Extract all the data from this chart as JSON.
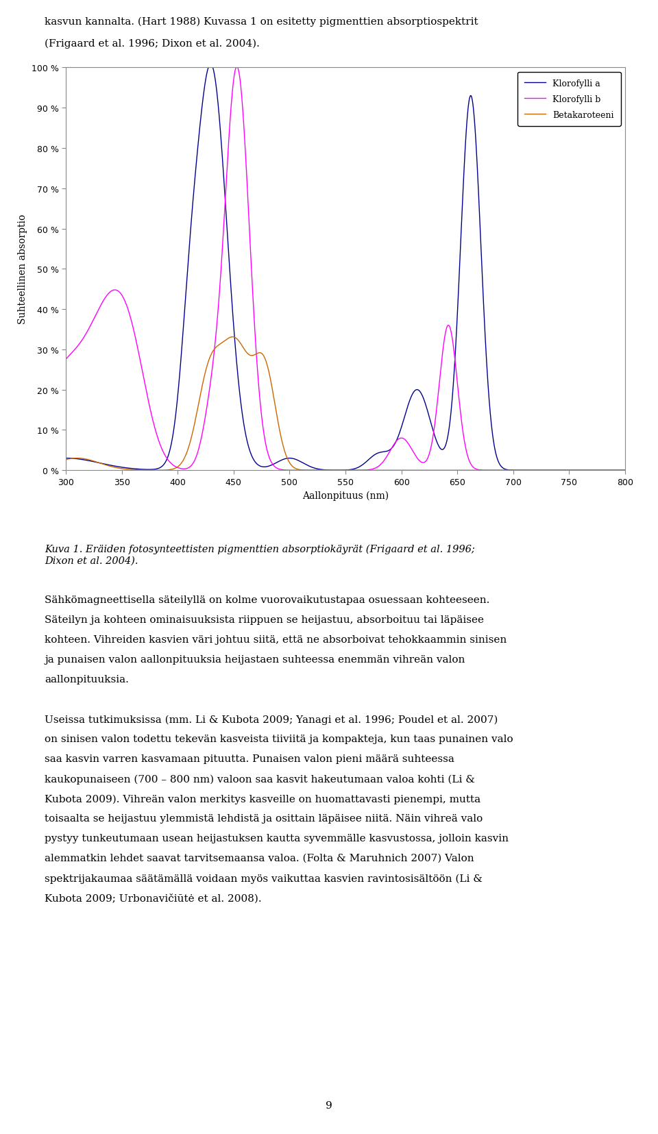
{
  "page_text_top": "kasvun kannalta. (Hart 1988) Kuvassa 1 on esitetty pigmenttien absorptiospektrit\n(Frigaard et al. 1996; Dixon et al. 2004).",
  "caption": "Kuva 1. Eräiden fotosynteettisten pigmenttien absorptiokäyrät (Frigaard et al. 1996;\nDixon et al. 2004).",
  "body_text": "Sähkömagneettisella säteilyllä on kolme vuorovaikutustapaa osuessaan kohteeseen. Säteilyn ja kohteen ominaisuuksista riippuen se heijastuu, absorboituu tai läpäisee kohteen. Vihreiden kasvien väri johtuu siitä, että ne absorboivat tehokkaammin sinisen ja punaisen valon aallonpituuksia heijastaen suhteessa enemmän vihreän valon aallonpituuksia.\n\nUseissa tutkimuksissa (mm. Li & Kubota 2009; Yanagi et al. 1996; Poudel et al. 2007) on sinisen valon todettu tekevän kasveista tiiviitä ja kompakteja, kun taas punainen valo saa kasvin varren kasvamaan pituutta. Punaisen valon pieni määrä suhteessa kaukopunaiseen (700 – 800 nm) valoon saa kasvit hakeutumaan valoa kohti (Li & Kubota 2009). Vihreän valon merkitys kasveille on huomattavasti pienempi, mutta toisaalta se heijastuu ylemmistä lehdistä ja osittain läpäisee niitä. Näin vihreä valo pystyy tunkeutumaan usean heijastuksen kautta syvemmälle kasvustossa, jolloin kasvin alemmatkin lehdet saavat tarvitsemaansa valoa. (Folta & Maruhnich 2007) Valon spektrijakaumaa säätämällä voidaan myös vaikuttaa kasvien ravintosisältöön (Li & Kubota 2009; Urbonavičiūtė et al. 2008).",
  "page_number": "9",
  "xlabel": "Aallonpituus (nm)",
  "ylabel": "Suhteellinen absorptio",
  "xlim": [
    300,
    800
  ],
  "ylim": [
    0,
    100
  ],
  "yticks": [
    0,
    10,
    20,
    30,
    40,
    50,
    60,
    70,
    80,
    90,
    100
  ],
  "ytick_labels": [
    "0 %",
    "10 %",
    "20 %",
    "30 %",
    "40 %",
    "50 %",
    "60 %",
    "70 %",
    "80 %",
    "90 %",
    "100 %"
  ],
  "xticks": [
    300,
    350,
    400,
    450,
    500,
    550,
    600,
    650,
    700,
    750,
    800
  ],
  "color_chl_a": "#00008B",
  "color_chl_b": "#FF00FF",
  "color_beta": "#CC6600",
  "legend_labels": [
    "Klorofylli a",
    "Klorofylli b",
    "Betakaroteeni"
  ],
  "background_color": "#FFFFFF",
  "figsize": [
    9.6,
    16.56
  ],
  "dpi": 100
}
